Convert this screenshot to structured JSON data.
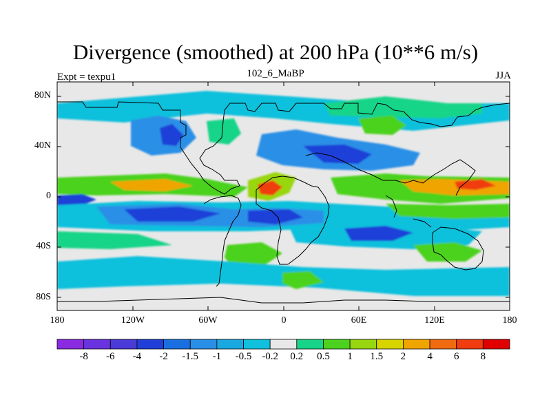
{
  "header": {
    "title": "Divergence (smoothed) at 200 hPa (10**6 m/s)",
    "experiment": "Expt = texpu1",
    "case_id": "102_6_MaBP",
    "season": "JJA"
  },
  "axes": {
    "lat_ticks": [
      "80N",
      "40N",
      "0",
      "40S",
      "80S"
    ],
    "lon_ticks": [
      "180",
      "120W",
      "60W",
      "0",
      "60E",
      "120E",
      "180"
    ]
  },
  "colorbar": {
    "labels": [
      "-8",
      "-6",
      "-4",
      "-2",
      "-1.5",
      "-1",
      "-0.5",
      "-0.2",
      "0.2",
      "0.5",
      "1",
      "1.5",
      "2",
      "4",
      "6",
      "8"
    ],
    "colors": [
      "#8a2be2",
      "#6a33e0",
      "#4a3ad8",
      "#1f3fd8",
      "#1a6fe0",
      "#2a8fe6",
      "#1aa8e0",
      "#10c0dc",
      "#e8e8e8",
      "#18d488",
      "#4cd21e",
      "#98d610",
      "#d8d400",
      "#f0a400",
      "#f06a10",
      "#f03c10",
      "#e00000"
    ]
  },
  "field_colors": {
    "neutral": "#e8e8e8",
    "strong_conv": "#1f3fd8",
    "conv": "#2a8fe6",
    "weak_conv": "#10c0dc",
    "weak_div": "#18d488",
    "div": "#4cd21e",
    "mid_div": "#98d610",
    "strong_div": "#f0a400",
    "very_strong_div": "#f03c10"
  }
}
